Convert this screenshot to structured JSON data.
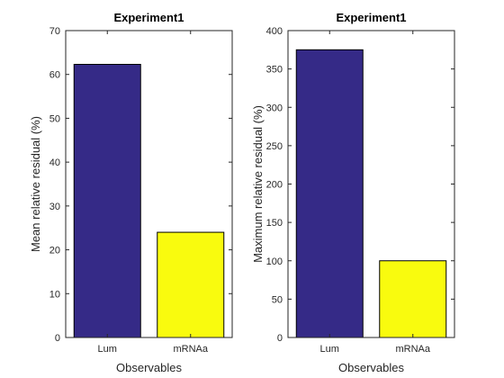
{
  "chart_data": [
    {
      "type": "bar",
      "title": "Experiment1",
      "xlabel": "Observables",
      "ylabel": "Mean relative residual (%)",
      "categories": [
        "Lum",
        "mRNAa"
      ],
      "values": [
        62.3,
        24.0
      ],
      "bar_colors": [
        "#352a87",
        "#f9fb0e"
      ],
      "ylim": [
        0,
        70
      ],
      "yticks": [
        0,
        10,
        20,
        30,
        40,
        50,
        60,
        70
      ],
      "grid": false,
      "legend": "none"
    },
    {
      "type": "bar",
      "title": "Experiment1",
      "xlabel": "Observables",
      "ylabel": "Maximum relative residual (%)",
      "categories": [
        "Lum",
        "mRNAa"
      ],
      "values": [
        375,
        100
      ],
      "bar_colors": [
        "#352a87",
        "#f9fb0e"
      ],
      "ylim": [
        0,
        400
      ],
      "yticks": [
        0,
        50,
        100,
        150,
        200,
        250,
        300,
        350,
        400
      ],
      "grid": false,
      "legend": "none"
    }
  ]
}
